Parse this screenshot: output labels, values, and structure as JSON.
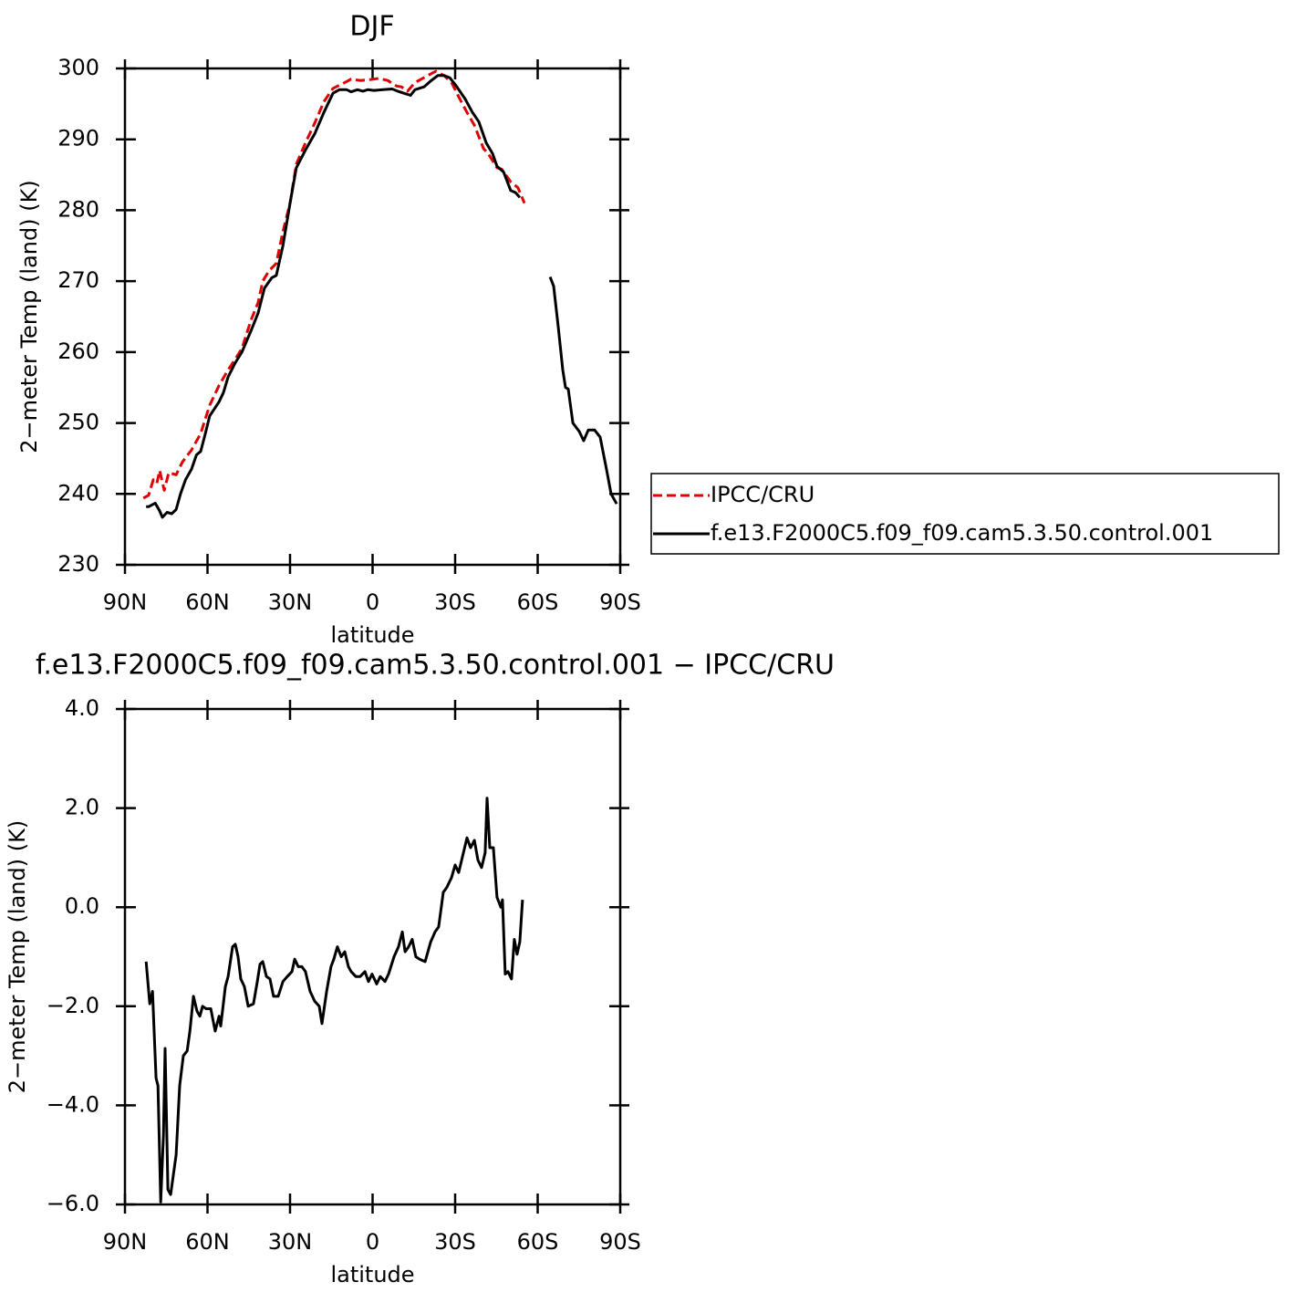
{
  "chart_data": [
    {
      "type": "line",
      "title": "DJF",
      "xlabel": "latitude",
      "ylabel": "2−meter Temp (land) (K)",
      "xlim": [
        90,
        -90
      ],
      "ylim": [
        230,
        300
      ],
      "xticks": [
        {
          "value": 90,
          "label": "90N"
        },
        {
          "value": 60,
          "label": "60N"
        },
        {
          "value": 30,
          "label": "30N"
        },
        0,
        {
          "value": -30,
          "label": "30S"
        },
        {
          "value": -60,
          "label": "60S"
        },
        {
          "value": -90,
          "label": "90S"
        }
      ],
      "yticks": [
        230,
        240,
        250,
        260,
        270,
        280,
        290,
        300
      ],
      "legend": "outside-right",
      "series": [
        {
          "name": "IPCC/CRU",
          "color": "#e00000",
          "dash": true,
          "x": [
            83.3,
            81.4,
            79.7,
            78.4,
            77.4,
            75.7,
            74.1,
            71.4,
            69.1,
            65.8,
            62.5,
            59.2,
            55.8,
            52.5,
            49.9,
            47.5,
            44.2,
            41.6,
            39.9,
            37.6,
            35,
            32.6,
            30,
            27.7,
            24.4,
            21,
            17.7,
            14.4,
            11.1,
            7.8,
            4.5,
            1.2,
            -2.2,
            -5.5,
            -8.8,
            -10.5,
            -12.7,
            -15.4,
            -18.7,
            -21,
            -23,
            -26,
            -28.7,
            -31.3,
            -34.3,
            -37,
            -40.3,
            -42,
            -45.2,
            -46.9,
            -50.2,
            -52.8,
            -55.2
          ],
          "values": [
            239.4,
            239.8,
            242,
            241.5,
            243.3,
            240.5,
            243,
            242.7,
            244.5,
            246.2,
            248.5,
            252.5,
            255.3,
            257.5,
            259,
            260.5,
            264.5,
            267,
            270,
            271.5,
            272.5,
            277,
            281,
            286.5,
            289.5,
            292.3,
            295.3,
            297.2,
            297.8,
            298.5,
            298.3,
            298.4,
            298.6,
            298.3,
            297.5,
            297.4,
            296.8,
            298,
            298.7,
            299.2,
            299.6,
            299,
            298,
            296,
            293.8,
            292,
            288.7,
            288,
            286,
            285.8,
            284,
            283.2,
            281
          ]
        },
        {
          "name": "f.e13.F2000C5.f09_f09.cam5.3.50.control.001",
          "color": "#000000",
          "dash": false,
          "x": [
            82.3,
            81.4,
            79,
            77.4,
            76.4,
            74.7,
            73,
            71.4,
            69.8,
            68,
            65.8,
            64,
            62.5,
            60.8,
            59.2,
            55.8,
            54.2,
            52.5,
            49.9,
            47.5,
            44.2,
            41.6,
            39.3,
            36.6,
            35,
            32.6,
            30,
            27.7,
            24.4,
            21,
            17.7,
            14.4,
            12.1,
            9.4,
            7.8,
            5.5,
            3.5,
            1.8,
            -0.5,
            -3.8,
            -7.1,
            -9.1,
            -11.4,
            -13.8,
            -15.4,
            -18.7,
            -21,
            -23.7,
            -26,
            -28,
            -30.3,
            -33.6,
            -36.3,
            -38.6,
            -41.3,
            -43.6,
            -45.2,
            -47.6,
            -50.2,
            -51.9,
            -53.5,
            -59,
            -64.5,
            -65.8,
            -67.5,
            -69.1,
            -70.1,
            -71.1,
            -72.8,
            -75.1,
            -76.7,
            -78.4,
            -80.7,
            -82.7,
            -85,
            -86.7,
            -88.7
          ],
          "values": [
            238.2,
            238.2,
            238.7,
            237.6,
            236.7,
            237.4,
            237.2,
            237.8,
            240,
            242,
            243.5,
            245.5,
            246,
            248.5,
            251,
            253,
            254.3,
            256.5,
            258.5,
            260,
            263,
            265.5,
            269,
            270.5,
            270.8,
            275,
            281,
            286,
            288.5,
            290.8,
            293.8,
            296.5,
            297,
            297,
            296.7,
            297,
            296.8,
            297,
            296.9,
            297,
            297.1,
            296.8,
            296.5,
            296.2,
            297,
            297.4,
            298.2,
            299,
            299,
            298.7,
            297.6,
            295.7,
            293.8,
            292.5,
            289.5,
            288,
            286.2,
            285.4,
            282.8,
            282.5,
            281.8,
            null,
            270.6,
            269.3,
            263.5,
            257.5,
            255,
            254.8,
            250,
            248.8,
            247.5,
            249,
            249,
            248,
            243.5,
            240,
            238.6
          ]
        }
      ]
    },
    {
      "type": "line",
      "title": "f.e13.F2000C5.f09_f09.cam5.3.50.control.001  −  IPCC/CRU",
      "xlabel": "latitude",
      "ylabel": "2−meter Temp (land) (K)",
      "xlim": [
        90,
        -90
      ],
      "ylim": [
        -6,
        4
      ],
      "xticks": [
        {
          "value": 90,
          "label": "90N"
        },
        {
          "value": 60,
          "label": "60N"
        },
        {
          "value": 30,
          "label": "30N"
        },
        0,
        {
          "value": -30,
          "label": "30S"
        },
        {
          "value": -60,
          "label": "60S"
        },
        {
          "value": -90,
          "label": "90S"
        }
      ],
      "yticks": [
        {
          "value": -6,
          "label": "−6.0"
        },
        {
          "value": -4,
          "label": "−4.0"
        },
        {
          "value": -2,
          "label": "−2.0"
        },
        {
          "value": 0,
          "label": "0.0"
        },
        {
          "value": 2,
          "label": "2.0"
        },
        {
          "value": 4,
          "label": "4.0"
        }
      ],
      "series": [
        {
          "color": "#000000",
          "dash": false,
          "x": [
            82.3,
            81,
            80,
            78.7,
            78,
            77,
            76,
            75.4,
            74.4,
            73.4,
            71.4,
            70.1,
            68.8,
            67.4,
            66.4,
            65.1,
            63.8,
            62.8,
            61.8,
            60.5,
            58.8,
            57.2,
            55.8,
            55.2,
            53.5,
            52.5,
            50.9,
            49.9,
            48.9,
            47.9,
            46.6,
            45.2,
            43.3,
            41.9,
            40.9,
            39.9,
            38.6,
            37.3,
            36,
            34.3,
            32.6,
            31,
            29.3,
            28.3,
            27,
            25.7,
            24.4,
            22.7,
            21,
            19.4,
            18.4,
            16.7,
            15.1,
            14.1,
            12.8,
            11.4,
            10.1,
            8.8,
            7.8,
            6.1,
            4.5,
            2.8,
            1.5,
            0.2,
            -1.5,
            -2.8,
            -4.5,
            -5.8,
            -7.8,
            -9.4,
            -10.8,
            -11.8,
            -13.1,
            -14.4,
            -15.7,
            -17.1,
            -19.1,
            -21.1,
            -22.7,
            -24,
            -25.7,
            -27,
            -28.7,
            -30,
            -31.3,
            -32.6,
            -34.3,
            -35.6,
            -37,
            -38.3,
            -39.6,
            -40.9,
            -41.6,
            -42.6,
            -43.9,
            -45.2,
            -46.6,
            -47.2,
            -48.2,
            -49.2,
            -50.5,
            -51.5,
            -52.5,
            -53.5,
            -54.5
          ],
          "values": [
            -1.1,
            -1.95,
            -1.7,
            -3.45,
            -3.6,
            -5.95,
            -4.6,
            -2.85,
            -5.7,
            -5.8,
            -5,
            -3.6,
            -3,
            -2.9,
            -2.5,
            -1.8,
            -2.1,
            -2.2,
            -2,
            -2.05,
            -2.05,
            -2.5,
            -2.2,
            -2.4,
            -1.6,
            -1.4,
            -0.8,
            -0.75,
            -1,
            -1.45,
            -1.6,
            -2,
            -1.95,
            -1.5,
            -1.15,
            -1.1,
            -1.4,
            -1.45,
            -1.8,
            -1.8,
            -1.5,
            -1.4,
            -1.3,
            -1.05,
            -1.2,
            -1.2,
            -1.3,
            -1.7,
            -1.9,
            -2,
            -2.35,
            -1.7,
            -1.2,
            -1.05,
            -0.8,
            -1,
            -0.9,
            -1.2,
            -1.3,
            -1.4,
            -1.4,
            -1.3,
            -1.5,
            -1.35,
            -1.55,
            -1.4,
            -1.5,
            -1.35,
            -1,
            -0.8,
            -0.5,
            -0.9,
            -0.8,
            -0.65,
            -1,
            -1.05,
            -1.1,
            -0.7,
            -0.5,
            -0.4,
            0.3,
            0.4,
            0.6,
            0.85,
            0.7,
            1,
            1.4,
            1.2,
            1.35,
            0.95,
            0.8,
            1.1,
            2.2,
            1.2,
            1.2,
            0.2,
            0,
            0.15,
            -1.35,
            -1.3,
            -1.45,
            -0.65,
            -0.95,
            -0.7,
            0.15
          ]
        }
      ]
    }
  ]
}
